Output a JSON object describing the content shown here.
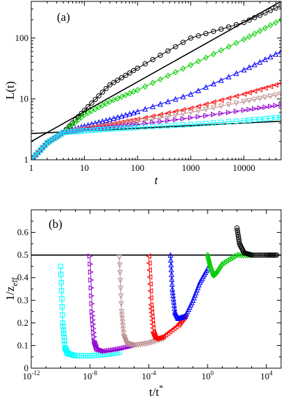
{
  "chart_data": [
    {
      "type": "line",
      "panel_label": "(a)",
      "xlabel": "t",
      "ylabel_main": "L",
      "ylabel_args": "(t)",
      "x_scale": "log",
      "y_scale": "log",
      "xlim": [
        1,
        50000
      ],
      "ylim": [
        1,
        400
      ],
      "x_ticks": [
        1,
        10,
        100,
        1000,
        10000
      ],
      "x_tick_labels": [
        "1",
        "10",
        "100",
        "1000",
        "10000"
      ],
      "y_ticks": [
        1,
        10,
        100
      ],
      "y_tick_labels": [
        "1",
        "10",
        "100"
      ],
      "reference_lines": [
        {
          "color": "#000000",
          "x": [
            1,
            50000
          ],
          "y": [
            2.0,
            400
          ]
        },
        {
          "color": "#000000",
          "x": [
            1,
            50000
          ],
          "y": [
            2.7,
            4.3
          ]
        }
      ],
      "series": [
        {
          "color": "#000000",
          "marker": "circle",
          "x": [
            1,
            2,
            4,
            10,
            30,
            100,
            1000,
            10000,
            50000
          ],
          "y": [
            1,
            1.9,
            2.8,
            6.5,
            17,
            32,
            100,
            180,
            340
          ]
        },
        {
          "color": "#00cc00",
          "marker": "diamond",
          "x": [
            1,
            2,
            4,
            10,
            30,
            100,
            1000,
            10000,
            50000
          ],
          "y": [
            1,
            1.9,
            2.8,
            5.5,
            9,
            14,
            36,
            95,
            200
          ]
        },
        {
          "color": "#0000ff",
          "marker": "triangle-up",
          "x": [
            1,
            2,
            4,
            10,
            30,
            100,
            1000,
            10000,
            50000
          ],
          "y": [
            1,
            1.9,
            2.8,
            3.6,
            4.6,
            6.2,
            12,
            30,
            60
          ]
        },
        {
          "color": "#ff0000",
          "marker": "triangle-left",
          "x": [
            1,
            2,
            4,
            10,
            30,
            100,
            1000,
            10000,
            50000
          ],
          "y": [
            1,
            1.9,
            2.8,
            3.3,
            3.8,
            4.6,
            7,
            12,
            18
          ]
        },
        {
          "color": "#bc8f8f",
          "marker": "triangle-down",
          "x": [
            1,
            2,
            4,
            10,
            30,
            100,
            1000,
            10000,
            50000
          ],
          "y": [
            1,
            1.9,
            2.8,
            3.2,
            3.6,
            4.2,
            6,
            9,
            12
          ]
        },
        {
          "color": "#9400d3",
          "marker": "triangle-right",
          "x": [
            1,
            2,
            4,
            10,
            30,
            100,
            1000,
            10000,
            50000
          ],
          "y": [
            1,
            1.9,
            2.8,
            3.1,
            3.4,
            3.8,
            4.9,
            6.5,
            8
          ]
        },
        {
          "color": "#00ffff",
          "marker": "square",
          "x": [
            1,
            2,
            4,
            10,
            30,
            100,
            1000,
            10000,
            50000
          ],
          "y": [
            1,
            1.9,
            2.8,
            3.0,
            3.2,
            3.4,
            3.8,
            4.4,
            5
          ]
        }
      ]
    },
    {
      "type": "line",
      "panel_label": "(b)",
      "xlabel_main": "t/t",
      "xlabel_sup": "*",
      "ylabel_main": "1/z",
      "ylabel_sub": "eff",
      "x_scale": "log",
      "y_scale": "linear",
      "xlim": [
        1e-12,
        100000.0
      ],
      "ylim": [
        0,
        0.7
      ],
      "x_ticks": [
        1e-12,
        1e-08,
        0.0001,
        1,
        10000
      ],
      "x_tick_labels": [
        {
          "base": "10",
          "exp": "-12"
        },
        {
          "base": "10",
          "exp": "-8"
        },
        {
          "base": "10",
          "exp": "-4"
        },
        {
          "base": "10",
          "exp": "0"
        },
        {
          "base": "10",
          "exp": "4"
        }
      ],
      "y_ticks": [
        0,
        0.1,
        0.2,
        0.3,
        0.4,
        0.5,
        0.6
      ],
      "y_tick_labels": [
        "0",
        "0.1",
        "0.2",
        "0.3",
        "0.4",
        "0.5",
        "0.6"
      ],
      "reference_lines": [
        {
          "color": "#000000",
          "x": [
            1e-12,
            100000.0
          ],
          "y": [
            0.5,
            0.5
          ]
        }
      ],
      "series": [
        {
          "color": "#00ffff",
          "marker": "square",
          "x": [
            1e-10,
            1.4e-10,
            2e-10,
            3e-10,
            1e-09,
            1e-08,
            1e-07,
            1e-06
          ],
          "y": [
            0.45,
            0.2,
            0.09,
            0.065,
            0.055,
            0.055,
            0.06,
            0.07
          ]
        },
        {
          "color": "#9400d3",
          "marker": "triangle-right",
          "x": [
            1e-08,
            1.4e-08,
            2e-08,
            3e-08,
            1e-07,
            1e-06,
            1e-05
          ],
          "y": [
            0.495,
            0.25,
            0.12,
            0.085,
            0.075,
            0.085,
            0.1
          ]
        },
        {
          "color": "#bc8f8f",
          "marker": "triangle-down",
          "x": [
            1e-06,
            1.4e-06,
            2e-06,
            3e-06,
            1e-05,
            0.0001,
            0.001
          ],
          "y": [
            0.49,
            0.25,
            0.14,
            0.11,
            0.1,
            0.11,
            0.13
          ]
        },
        {
          "color": "#ff0000",
          "marker": "triangle-left",
          "x": [
            0.0001,
            0.00014,
            0.0002,
            0.0003,
            0.001,
            0.01,
            0.03
          ],
          "y": [
            0.495,
            0.28,
            0.16,
            0.13,
            0.14,
            0.19,
            0.23
          ]
        },
        {
          "color": "#0000ff",
          "marker": "triangle-up",
          "x": [
            0.003,
            0.004,
            0.006,
            0.01,
            0.03,
            0.1,
            0.3,
            1
          ],
          "y": [
            0.5,
            0.35,
            0.25,
            0.22,
            0.23,
            0.3,
            0.38,
            0.44
          ]
        },
        {
          "color": "#00cc00",
          "marker": "diamond",
          "x": [
            1,
            1.5,
            2.5,
            4,
            10,
            100,
            1000
          ],
          "y": [
            0.5,
            0.45,
            0.41,
            0.42,
            0.46,
            0.5,
            0.5
          ]
        },
        {
          "color": "#000000",
          "marker": "circle",
          "x": [
            100,
            150,
            300,
            1000,
            10000,
            50000
          ],
          "y": [
            0.62,
            0.55,
            0.51,
            0.5,
            0.5,
            0.5
          ]
        }
      ]
    }
  ]
}
